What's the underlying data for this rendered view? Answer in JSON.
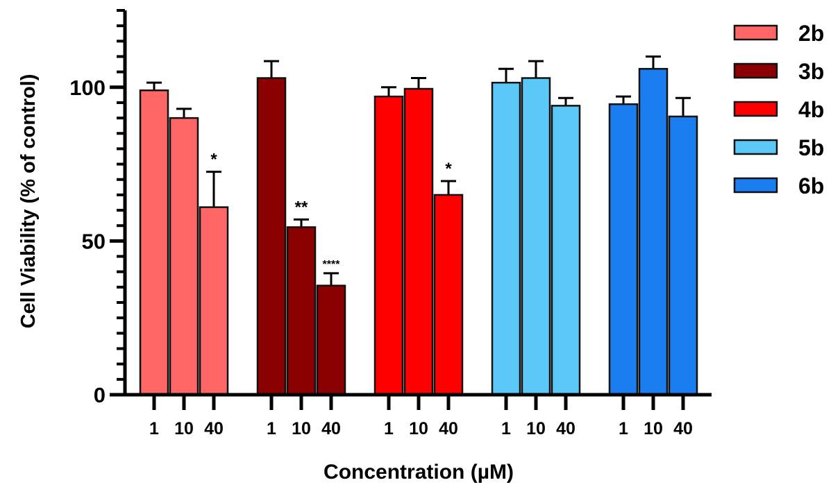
{
  "chart_data": {
    "type": "bar",
    "title": "",
    "xlabel": "Concentration (µM)",
    "ylabel": "Cell Viability (% of control)",
    "ylim": [
      0,
      125
    ],
    "yticks": [
      0,
      50,
      100
    ],
    "yminor_step": 5,
    "grid": false,
    "legend_position": "right",
    "categories": [
      "1",
      "10",
      "40"
    ],
    "series": [
      {
        "name": "2b",
        "color": "#FF6666",
        "values": [
          99,
          90,
          61
        ],
        "errors": [
          2.5,
          3,
          11.5
        ],
        "significance": [
          "",
          "",
          "*"
        ]
      },
      {
        "name": "3b",
        "color": "#8B0000",
        "values": [
          103,
          54.5,
          35.5
        ],
        "errors": [
          5.5,
          2.5,
          4
        ],
        "significance": [
          "",
          "**",
          "****"
        ]
      },
      {
        "name": "4b",
        "color": "#FF0000",
        "values": [
          97,
          99.5,
          65
        ],
        "errors": [
          3,
          3.5,
          4.5
        ],
        "significance": [
          "",
          "",
          "*"
        ]
      },
      {
        "name": "5b",
        "color": "#5CC8F7",
        "values": [
          101.5,
          103,
          94
        ],
        "errors": [
          4.5,
          5.5,
          2.5
        ],
        "significance": [
          "",
          "",
          ""
        ]
      },
      {
        "name": "6b",
        "color": "#1A7DF0",
        "values": [
          94.5,
          106,
          90.5
        ],
        "errors": [
          2.5,
          4,
          6
        ],
        "significance": [
          "",
          "",
          ""
        ]
      }
    ]
  }
}
